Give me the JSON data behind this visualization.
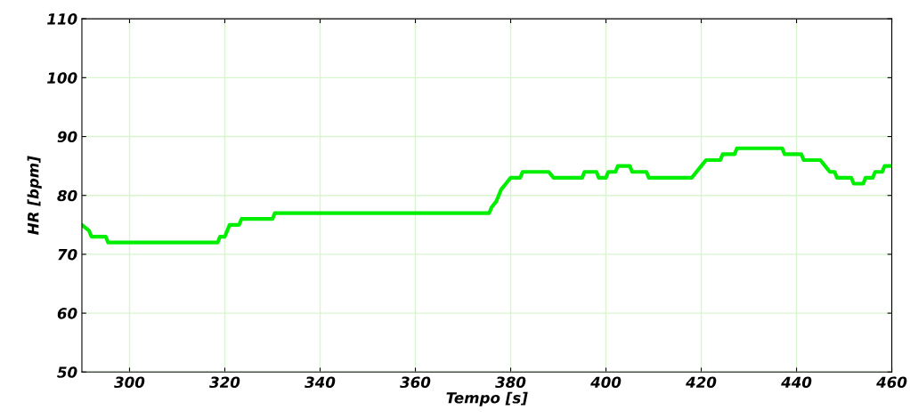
{
  "chart_data": {
    "type": "line",
    "xlabel": "Tempo [s]",
    "ylabel": "HR [bpm]",
    "x": [
      290,
      291.5,
      292,
      295,
      295.5,
      318.5,
      319,
      320,
      320.5,
      321,
      321.5,
      323,
      323.5,
      330,
      330.5,
      375.5,
      376,
      377,
      377.5,
      378,
      379,
      380,
      382,
      382.5,
      388,
      389,
      395,
      395.5,
      398,
      398.5,
      400,
      400.5,
      402,
      402.5,
      405,
      405.5,
      408.5,
      409,
      418,
      419,
      420,
      421,
      424,
      424.5,
      427,
      427.5,
      437,
      437.5,
      441,
      441.5,
      445,
      446,
      447,
      448,
      448.5,
      451.5,
      452,
      454,
      454.5,
      456,
      456.5,
      458,
      458.5,
      460
    ],
    "series": [
      {
        "color": "#00ee00",
        "values": [
          75,
          74,
          73,
          73,
          72,
          72,
          73,
          73,
          74,
          75,
          75,
          75,
          76,
          76,
          77,
          77,
          78,
          79,
          80,
          81,
          82,
          83,
          83,
          84,
          84,
          83,
          83,
          84,
          84,
          83,
          83,
          84,
          84,
          85,
          85,
          84,
          84,
          83,
          83,
          84,
          85,
          86,
          86,
          87,
          87,
          88,
          88,
          87,
          87,
          86,
          86,
          85,
          84,
          84,
          83,
          83,
          82,
          82,
          83,
          83,
          84,
          84,
          85,
          85
        ]
      }
    ],
    "xlim": [
      290,
      460
    ],
    "ylim": [
      50,
      110
    ],
    "xticks": [
      300,
      320,
      340,
      360,
      380,
      400,
      420,
      440,
      460
    ],
    "yticks": [
      50,
      60,
      70,
      80,
      90,
      100,
      110
    ],
    "grid": true,
    "line_style": "solid",
    "marker": "none"
  }
}
